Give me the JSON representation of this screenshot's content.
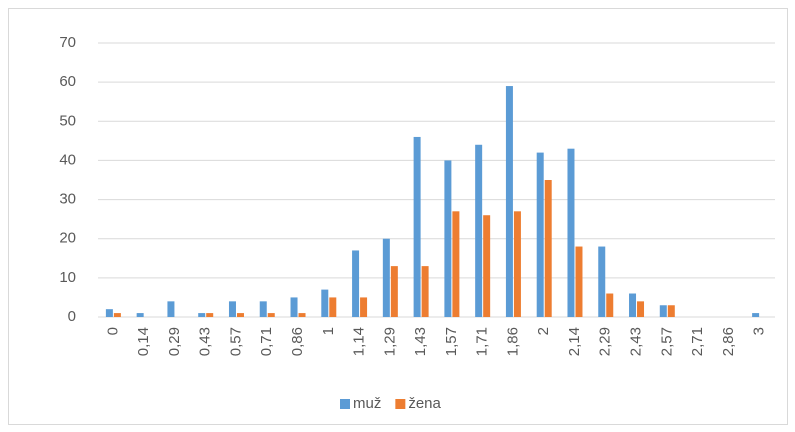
{
  "chart_data": {
    "type": "bar",
    "categories": [
      "0",
      "0,14",
      "0,29",
      "0,43",
      "0,57",
      "0,71",
      "0,86",
      "1",
      "1,14",
      "1,29",
      "1,43",
      "1,57",
      "1,71",
      "1,86",
      "2",
      "2,14",
      "2,29",
      "2,43",
      "2,57",
      "2,71",
      "2,86",
      "3"
    ],
    "series": [
      {
        "name": "muž",
        "color": "#5b9bd5",
        "values": [
          2,
          1,
          4,
          1,
          4,
          4,
          5,
          7,
          17,
          20,
          46,
          40,
          44,
          59,
          42,
          43,
          18,
          6,
          3,
          0,
          0,
          1
        ]
      },
      {
        "name": "žena",
        "color": "#ed7d31",
        "values": [
          1,
          0,
          0,
          1,
          1,
          1,
          1,
          5,
          5,
          13,
          13,
          27,
          26,
          27,
          35,
          18,
          6,
          4,
          3,
          0,
          0,
          0
        ]
      }
    ],
    "ylim": [
      0,
      70
    ],
    "yticks": [
      0,
      10,
      20,
      30,
      40,
      50,
      60,
      70
    ],
    "grid": true,
    "legend": "bottom"
  }
}
